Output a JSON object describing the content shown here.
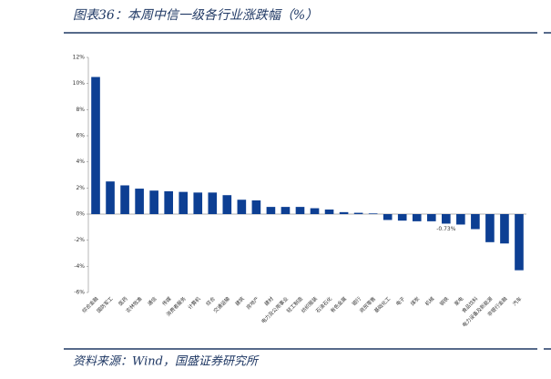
{
  "chart_data": {
    "type": "bar",
    "title": "图表36：本周中信一级各行业涨跌幅（%）",
    "source": "资料来源：Wind，国盛证券研究所",
    "categories": [
      "综合金融",
      "国防军工",
      "医药",
      "农林牧渔",
      "通信",
      "传媒",
      "消费者服务",
      "计算机",
      "综合",
      "交通运输",
      "建筑",
      "房地产",
      "建材",
      "电力及公用事业",
      "轻工制造",
      "纺织服装",
      "石油石化",
      "有色金属",
      "银行",
      "商贸零售",
      "基础化工",
      "电子",
      "煤炭",
      "机械",
      "钢铁",
      "家电",
      "食品饮料",
      "电力设备及新能源",
      "非银行金融",
      "汽车"
    ],
    "values": [
      10.5,
      2.5,
      2.2,
      1.95,
      1.8,
      1.75,
      1.7,
      1.65,
      1.65,
      1.45,
      1.1,
      1.05,
      0.55,
      0.55,
      0.55,
      0.45,
      0.35,
      0.15,
      0.1,
      0.05,
      -0.45,
      -0.5,
      -0.55,
      -0.55,
      -0.73,
      -0.8,
      -1.15,
      -2.15,
      -2.25,
      -4.3
    ],
    "value_labels": [
      null,
      null,
      null,
      null,
      null,
      null,
      null,
      null,
      null,
      null,
      null,
      null,
      null,
      null,
      null,
      null,
      null,
      null,
      null,
      null,
      null,
      null,
      null,
      null,
      "-0.73%",
      null,
      null,
      null,
      null,
      null
    ],
    "color": "#0d3f93",
    "ylim": [
      -6,
      12
    ],
    "yticks": [
      {
        "value": -6,
        "label": "-6%"
      },
      {
        "value": -4,
        "label": "-4%"
      },
      {
        "value": -2,
        "label": "-2%"
      },
      {
        "value": 0,
        "label": "0%"
      },
      {
        "value": 2,
        "label": "2%"
      },
      {
        "value": 4,
        "label": "4%"
      },
      {
        "value": 6,
        "label": "6%"
      },
      {
        "value": 8,
        "label": "8%"
      },
      {
        "value": 10,
        "label": "10%"
      },
      {
        "value": 12,
        "label": "12%"
      }
    ],
    "grid": false
  }
}
